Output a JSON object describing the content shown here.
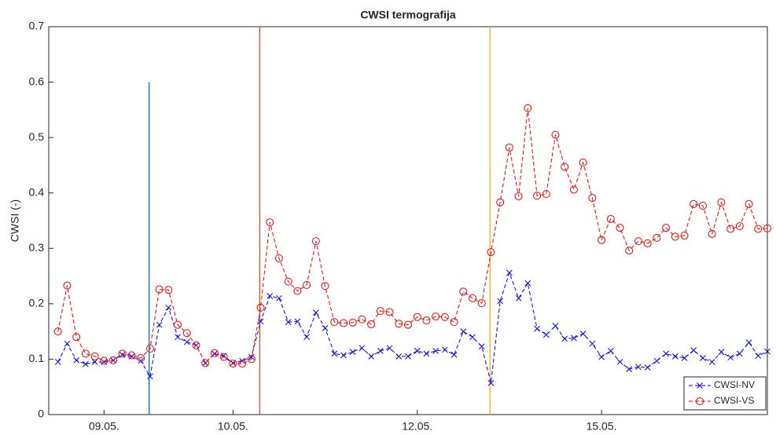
{
  "chart_data": {
    "type": "line",
    "title": "CWSI termografija",
    "ylabel": "CWSI (-)",
    "x": [
      1,
      2,
      3,
      4,
      5,
      6,
      7,
      8,
      9,
      10,
      11,
      12,
      13,
      14,
      15,
      16,
      17,
      18,
      19,
      20,
      21,
      22,
      23,
      24,
      25,
      26,
      27,
      28,
      29,
      30,
      31,
      32,
      33,
      34,
      35,
      36,
      37,
      38,
      39,
      40,
      41,
      42,
      43,
      44,
      45,
      46,
      47,
      48,
      49,
      50,
      51,
      52,
      53,
      54,
      55,
      56,
      57,
      58,
      59,
      60,
      61,
      62,
      63,
      64,
      65,
      66,
      67,
      68,
      69,
      70,
      71,
      72,
      73,
      74,
      75,
      76,
      77,
      78
    ],
    "series": [
      {
        "name": "CWSI-NV",
        "color": "#0000ff",
        "marker": "x",
        "values": [
          0.095,
          0.128,
          0.098,
          0.091,
          0.095,
          0.095,
          0.098,
          0.108,
          0.105,
          0.097,
          0.069,
          0.162,
          0.193,
          0.14,
          0.131,
          0.125,
          0.093,
          0.11,
          0.106,
          0.093,
          0.097,
          0.104,
          0.168,
          0.214,
          0.21,
          0.167,
          0.168,
          0.14,
          0.184,
          0.156,
          0.11,
          0.107,
          0.113,
          0.12,
          0.105,
          0.115,
          0.12,
          0.105,
          0.105,
          0.115,
          0.11,
          0.115,
          0.117,
          0.108,
          0.15,
          0.14,
          0.123,
          0.057,
          0.205,
          0.256,
          0.21,
          0.237,
          0.155,
          0.144,
          0.16,
          0.137,
          0.138,
          0.146,
          0.128,
          0.104,
          0.115,
          0.095,
          0.082,
          0.086,
          0.085,
          0.097,
          0.11,
          0.105,
          0.102,
          0.116,
          0.102,
          0.095,
          0.113,
          0.103,
          0.11,
          0.13,
          0.106,
          0.114
        ]
      },
      {
        "name": "CWSI-VS",
        "color": "#ff0000",
        "marker": "o",
        "values": [
          0.15,
          0.233,
          0.14,
          0.11,
          0.105,
          0.097,
          0.098,
          0.11,
          0.107,
          0.102,
          0.119,
          0.226,
          0.225,
          0.162,
          0.147,
          0.125,
          0.093,
          0.111,
          0.104,
          0.092,
          0.092,
          0.1,
          0.193,
          0.347,
          0.282,
          0.24,
          0.223,
          0.234,
          0.313,
          0.232,
          0.167,
          0.165,
          0.166,
          0.172,
          0.163,
          0.187,
          0.185,
          0.164,
          0.162,
          0.176,
          0.17,
          0.177,
          0.176,
          0.167,
          0.222,
          0.21,
          0.201,
          0.293,
          0.383,
          0.482,
          0.394,
          0.553,
          0.395,
          0.398,
          0.505,
          0.447,
          0.406,
          0.455,
          0.391,
          0.315,
          0.353,
          0.337,
          0.296,
          0.313,
          0.309,
          0.319,
          0.337,
          0.321,
          0.323,
          0.38,
          0.377,
          0.326,
          0.383,
          0.335,
          0.34,
          0.38,
          0.335,
          0.336
        ]
      }
    ],
    "vlines": [
      {
        "x": 10.9,
        "ymax": 0.6,
        "color": "#0072bd"
      },
      {
        "x": 22.9,
        "ymax": 0.7,
        "color": "#d95319"
      },
      {
        "x": 47.9,
        "ymax": 0.7,
        "color": "#edb120"
      }
    ],
    "xlim": [
      0,
      78
    ],
    "ylim": [
      0,
      0.7
    ],
    "xticks": [
      {
        "value": 6,
        "label": "09.05."
      },
      {
        "value": 20,
        "label": "10.05."
      },
      {
        "value": 40,
        "label": "12.05."
      },
      {
        "value": 60,
        "label": "15.05."
      }
    ],
    "yticks": [
      0,
      0.1,
      0.2,
      0.3,
      0.4,
      0.5,
      0.6,
      0.7
    ],
    "legend": "lower right",
    "grid": false
  }
}
